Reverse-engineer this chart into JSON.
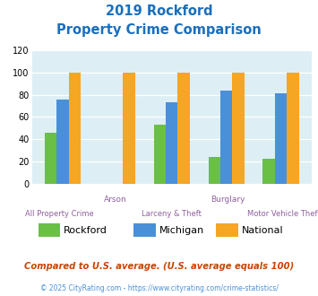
{
  "title_line1": "2019 Rockford",
  "title_line2": "Property Crime Comparison",
  "title_color": "#1a6fbd",
  "rockford": [
    46,
    0,
    53,
    24,
    22
  ],
  "michigan": [
    76,
    0,
    73,
    84,
    81
  ],
  "national": [
    100,
    100,
    100,
    100,
    100
  ],
  "rockford_color": "#6abf45",
  "michigan_color": "#4a90d9",
  "national_color": "#f5a623",
  "ylim": [
    0,
    120
  ],
  "yticks": [
    0,
    20,
    40,
    60,
    80,
    100,
    120
  ],
  "legend_labels": [
    "Rockford",
    "Michigan",
    "National"
  ],
  "top_labels": [
    "",
    "Arson",
    "",
    "Burglary",
    ""
  ],
  "bottom_labels": [
    "All Property Crime",
    "",
    "Larceny & Theft",
    "",
    "Motor Vehicle Theft"
  ],
  "footnote1": "Compared to U.S. average. (U.S. average equals 100)",
  "footnote1_color": "#cc4400",
  "footnote2": "© 2025 CityRating.com - https://www.cityrating.com/crime-statistics/",
  "footnote2_color": "#4a90d9",
  "bg_color": "#ddeef5"
}
